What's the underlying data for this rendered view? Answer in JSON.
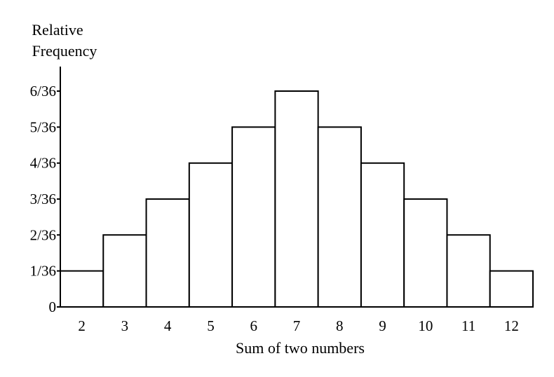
{
  "chart_data": {
    "type": "bar",
    "ylabel_lines": [
      "Relative",
      "Frequency"
    ],
    "xlabel": "Sum of two numbers",
    "categories": [
      "2",
      "3",
      "4",
      "5",
      "6",
      "7",
      "8",
      "9",
      "10",
      "11",
      "12"
    ],
    "values": [
      0.0278,
      0.0556,
      0.0833,
      0.1111,
      0.1389,
      0.1667,
      0.1389,
      0.1111,
      0.0833,
      0.0556,
      0.0278
    ],
    "y_ticks": [
      {
        "value": 0,
        "label": "0"
      },
      {
        "value": 0.0278,
        "label": "1/36"
      },
      {
        "value": 0.0556,
        "label": "2/36"
      },
      {
        "value": 0.0833,
        "label": "3/36"
      },
      {
        "value": 0.1111,
        "label": "4/36"
      },
      {
        "value": 0.1389,
        "label": "5/36"
      },
      {
        "value": 0.1667,
        "label": "6/36"
      }
    ],
    "ylim": [
      0,
      0.19
    ],
    "grid": false,
    "bar_fill": "#ffffff",
    "bar_stroke": "#000000"
  }
}
